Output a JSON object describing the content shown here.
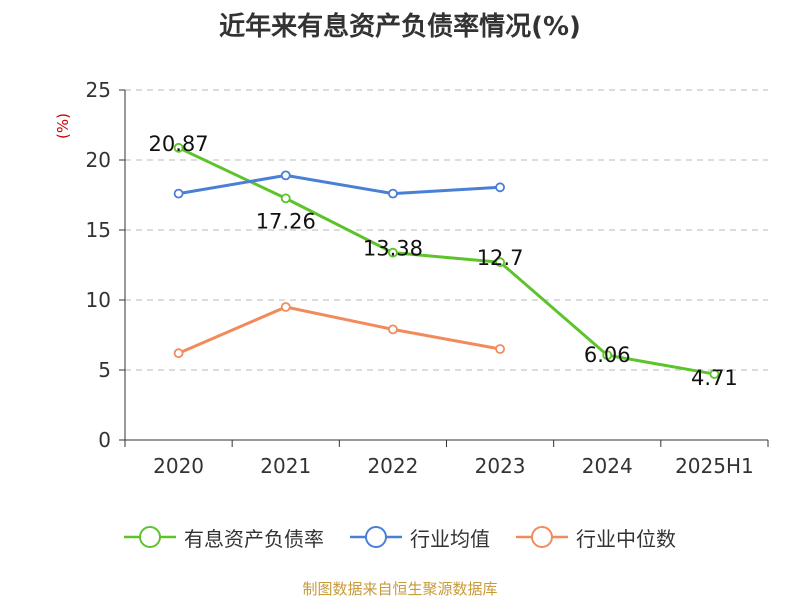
{
  "colors": {
    "debt_ratio": "#5cc42a",
    "industry_avg": "#4a7fd6",
    "industry_median": "#f28b5c",
    "grid": "#c8c8c8",
    "axis": "#333333",
    "source": "#c79a3a",
    "unit": "#cc0000"
  },
  "chart_data": {
    "type": "line",
    "title": "近年来有息资产负债率情况(%)",
    "ylabel": "(%)",
    "categories": [
      "2020",
      "2021",
      "2022",
      "2023",
      "2024",
      "2025H1"
    ],
    "ylim": [
      0,
      25
    ],
    "yticks": [
      0,
      5,
      10,
      15,
      20,
      25
    ],
    "grid": true,
    "legend_position": "bottom",
    "series": [
      {
        "name": "有息资产负债率",
        "color_key": "debt_ratio",
        "values": [
          20.87,
          17.26,
          13.38,
          12.7,
          6.06,
          4.71
        ],
        "labels": [
          "20.87",
          "17.26",
          "13.38",
          "12.7",
          "6.06",
          "4.71"
        ]
      },
      {
        "name": "行业均值",
        "color_key": "industry_avg",
        "values": [
          17.6,
          18.9,
          17.6,
          18.05,
          null,
          null
        ]
      },
      {
        "name": "行业中位数",
        "color_key": "industry_median",
        "values": [
          6.2,
          9.5,
          7.9,
          6.5,
          null,
          null
        ]
      }
    ]
  },
  "footer": {
    "source": "制图数据来自恒生聚源数据库"
  }
}
